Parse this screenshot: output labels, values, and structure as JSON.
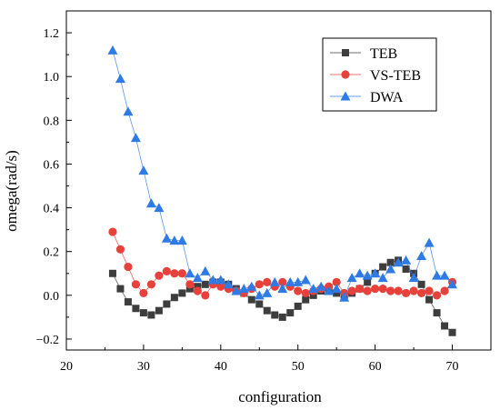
{
  "chart_data": {
    "type": "line",
    "xlabel": "configuration",
    "ylabel": "omega(rad/s)",
    "xlim": [
      20,
      75
    ],
    "ylim": [
      -0.25,
      1.3
    ],
    "xticks": [
      20,
      30,
      40,
      50,
      60,
      70
    ],
    "xtick_labels": [
      "20",
      "30",
      "40",
      "50",
      "60",
      "70"
    ],
    "yticks": [
      -0.2,
      0.0,
      0.2,
      0.4,
      0.6,
      0.8,
      1.0,
      1.2
    ],
    "ytick_labels": [
      "−0.2",
      "0.0",
      "0.2",
      "0.4",
      "0.6",
      "0.8",
      "1.0",
      "1.2"
    ],
    "grid": false,
    "legend_position": "top-right",
    "x": [
      26,
      27,
      28,
      29,
      30,
      31,
      32,
      33,
      34,
      35,
      36,
      37,
      38,
      39,
      40,
      41,
      42,
      43,
      44,
      45,
      46,
      47,
      48,
      49,
      50,
      51,
      52,
      53,
      54,
      55,
      56,
      57,
      58,
      59,
      60,
      61,
      62,
      63,
      64,
      65,
      66,
      67,
      68,
      69,
      70
    ],
    "series": [
      {
        "name": "TEB",
        "color": "#3d3d3d",
        "marker": "square",
        "values": [
          0.1,
          0.03,
          -0.03,
          -0.06,
          -0.08,
          -0.09,
          -0.07,
          -0.04,
          -0.01,
          0.01,
          0.03,
          0.04,
          0.05,
          0.06,
          0.06,
          0.05,
          0.03,
          0.01,
          -0.02,
          -0.04,
          -0.07,
          -0.09,
          -0.1,
          -0.08,
          -0.05,
          -0.02,
          0.0,
          0.02,
          0.03,
          0.01,
          0.0,
          0.01,
          0.03,
          0.06,
          0.1,
          0.13,
          0.15,
          0.16,
          0.12,
          0.1,
          0.05,
          -0.02,
          -0.08,
          -0.14,
          -0.17
        ]
      },
      {
        "name": "VS-TEB",
        "color": "#e8403a",
        "marker": "circle",
        "values": [
          0.29,
          0.21,
          0.13,
          0.05,
          0.01,
          0.05,
          0.09,
          0.11,
          0.1,
          0.1,
          0.05,
          0.02,
          0.0,
          0.05,
          0.04,
          0.03,
          0.02,
          0.01,
          0.03,
          0.05,
          0.06,
          0.04,
          0.06,
          0.04,
          0.02,
          0.01,
          0.02,
          0.03,
          0.04,
          0.06,
          0.01,
          0.02,
          0.03,
          0.02,
          0.03,
          0.03,
          0.02,
          0.02,
          0.01,
          0.02,
          0.01,
          0.02,
          0.0,
          0.02,
          0.06
        ]
      },
      {
        "name": "DWA",
        "color": "#2f7be6",
        "marker": "triangle",
        "values": [
          1.12,
          0.99,
          0.84,
          0.72,
          0.57,
          0.42,
          0.4,
          0.26,
          0.25,
          0.25,
          0.1,
          0.08,
          0.11,
          0.07,
          0.07,
          0.05,
          0.02,
          0.03,
          0.04,
          0.0,
          0.01,
          0.06,
          0.03,
          0.06,
          0.06,
          0.07,
          0.03,
          0.04,
          0.02,
          0.03,
          -0.01,
          0.08,
          0.1,
          0.09,
          0.1,
          0.08,
          0.12,
          0.15,
          0.16,
          0.08,
          0.18,
          0.24,
          0.09,
          0.09,
          0.05
        ]
      }
    ]
  }
}
